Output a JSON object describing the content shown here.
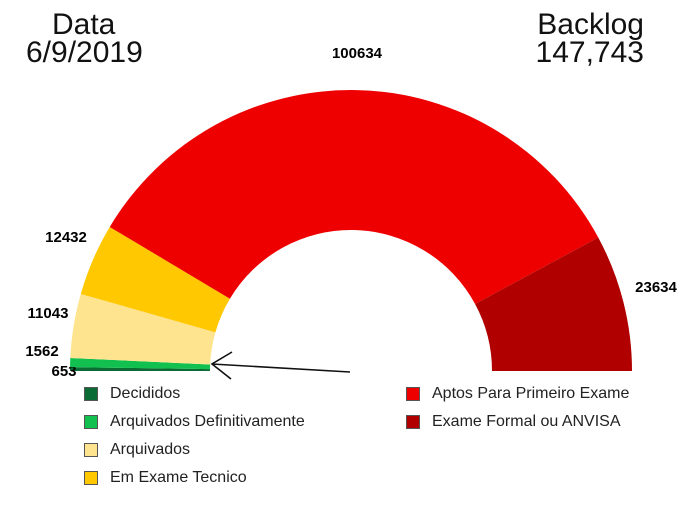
{
  "header": {
    "date_label": "Data",
    "date_value": "6/9/2019",
    "backlog_label": "Backlog",
    "backlog_value": "147,743"
  },
  "chart_data": {
    "type": "pie",
    "subtype": "semi-donut",
    "categories": [
      "Decididos",
      "Arquivados Definitivamente",
      "Arquivados",
      "Em Exame Tecnico",
      "Aptos Para Primeiro Exame",
      "Exame Formal ou ANVISA"
    ],
    "values": [
      653,
      1562,
      11043,
      12432,
      100634,
      23634
    ],
    "data_labels": [
      "653",
      "1562",
      "11043",
      "12432",
      "100634",
      "23634"
    ],
    "colors": [
      "#0b6b35",
      "#12c04f",
      "#ffe48f",
      "#ffc800",
      "#ee0000",
      "#b00000"
    ],
    "legend_placement": "bottom"
  }
}
